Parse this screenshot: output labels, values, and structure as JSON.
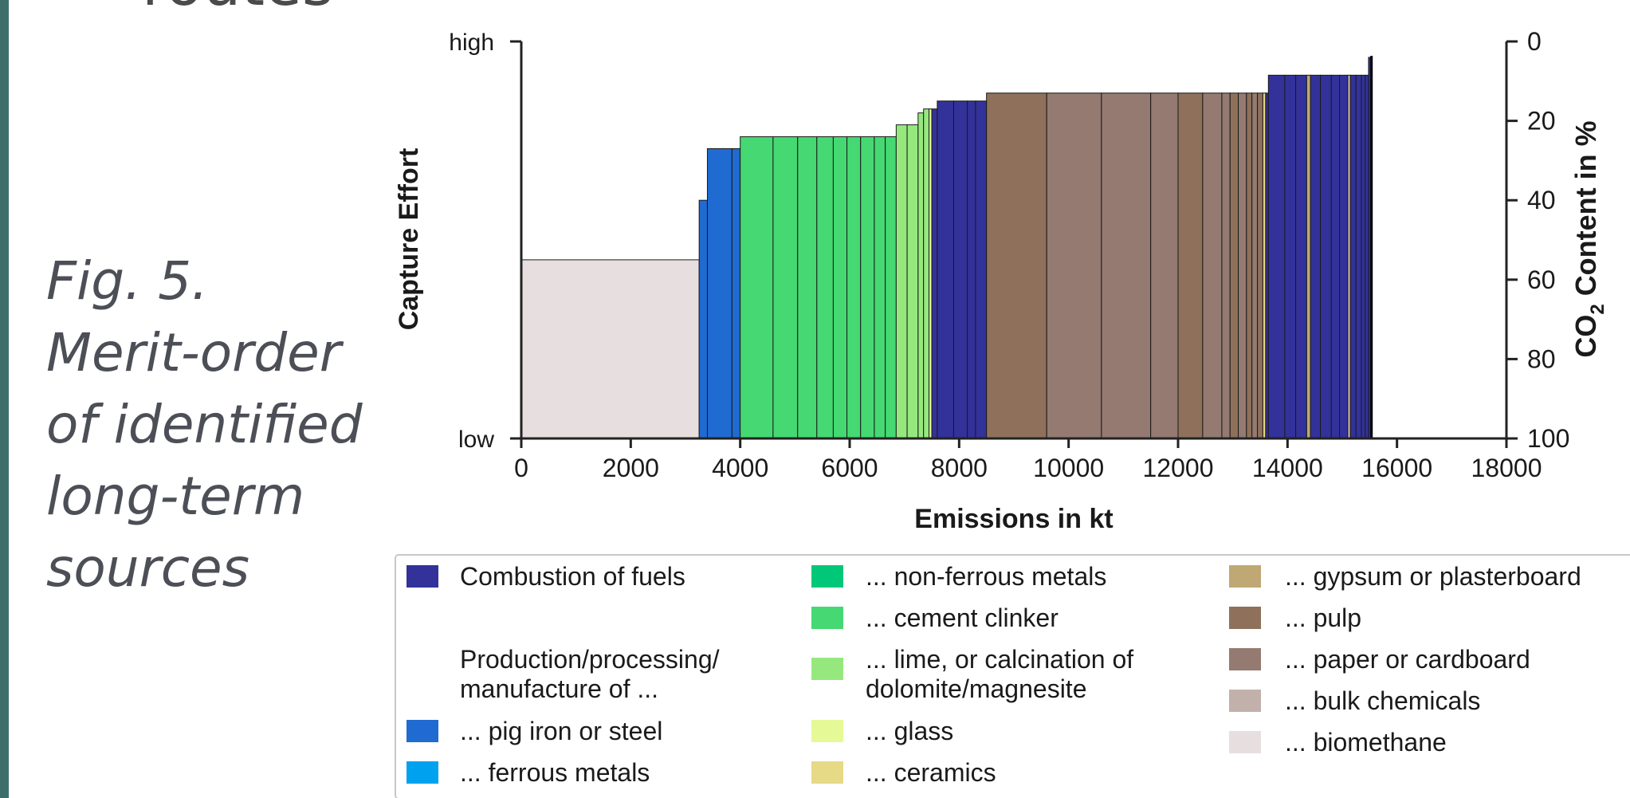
{
  "heading_fragment": "routes",
  "caption": {
    "lines": [
      "Fig. 5.",
      "Merit-order",
      "of identified",
      "long-term",
      "sources"
    ]
  },
  "chart_data": {
    "type": "bar",
    "subtype": "merit-order step chart (variable width bars)",
    "xlabel": "Emissions in kt",
    "ylabel_left": "Capture Effort",
    "ylabel_right_parts": [
      "CO",
      "2",
      " Content in %"
    ],
    "xlim": [
      0,
      18000
    ],
    "x_ticks": [
      "0",
      "2000",
      "4000",
      "6000",
      "8000",
      "10000",
      "12000",
      "14000",
      "16000",
      "18000"
    ],
    "left_ticks": [
      "high",
      "low"
    ],
    "right_ticks": [
      "0",
      "20",
      "40",
      "60",
      "80",
      "100"
    ],
    "right_ylim_inverted": [
      0,
      100
    ],
    "colors": {
      "combustion": "#32329a",
      "steel": "#1f6bd1",
      "ferrous": "#00a2f0",
      "nonferrous": "#00c878",
      "cement": "#45d873",
      "lime": "#96e87e",
      "glass": "#e5f996",
      "ceramics": "#e6da87",
      "gypsum": "#bfa874",
      "pulp": "#8f705a",
      "paper": "#947a71",
      "bulk": "#c2b0aa",
      "biomethane": "#e7dfdf"
    },
    "bars": [
      {
        "category": "biomethane",
        "x0": 0,
        "x1": 3250,
        "co2_pct": 55
      },
      {
        "category": "steel",
        "x0": 3250,
        "x1": 3400,
        "co2_pct": 40
      },
      {
        "category": "steel",
        "x0": 3400,
        "x1": 3850,
        "co2_pct": 27
      },
      {
        "category": "steel",
        "x0": 3850,
        "x1": 4000,
        "co2_pct": 27
      },
      {
        "category": "cement",
        "x0": 4000,
        "x1": 4600,
        "co2_pct": 24
      },
      {
        "category": "cement",
        "x0": 4600,
        "x1": 5050,
        "co2_pct": 24
      },
      {
        "category": "cement",
        "x0": 5050,
        "x1": 5400,
        "co2_pct": 24
      },
      {
        "category": "cement",
        "x0": 5400,
        "x1": 5700,
        "co2_pct": 24
      },
      {
        "category": "cement",
        "x0": 5700,
        "x1": 5950,
        "co2_pct": 24
      },
      {
        "category": "cement",
        "x0": 5950,
        "x1": 6200,
        "co2_pct": 24
      },
      {
        "category": "cement",
        "x0": 6200,
        "x1": 6450,
        "co2_pct": 24
      },
      {
        "category": "cement",
        "x0": 6450,
        "x1": 6650,
        "co2_pct": 24
      },
      {
        "category": "cement",
        "x0": 6650,
        "x1": 6850,
        "co2_pct": 24
      },
      {
        "category": "lime",
        "x0": 6850,
        "x1": 7050,
        "co2_pct": 21
      },
      {
        "category": "lime",
        "x0": 7050,
        "x1": 7250,
        "co2_pct": 21
      },
      {
        "category": "lime",
        "x0": 7250,
        "x1": 7350,
        "co2_pct": 18
      },
      {
        "category": "lime",
        "x0": 7350,
        "x1": 7450,
        "co2_pct": 17
      },
      {
        "category": "glass",
        "x0": 7450,
        "x1": 7500,
        "co2_pct": 17
      },
      {
        "category": "combustion",
        "x0": 7500,
        "x1": 7600,
        "co2_pct": 17
      },
      {
        "category": "combustion",
        "x0": 7600,
        "x1": 7900,
        "co2_pct": 15
      },
      {
        "category": "combustion",
        "x0": 7900,
        "x1": 8150,
        "co2_pct": 15
      },
      {
        "category": "combustion",
        "x0": 8150,
        "x1": 8300,
        "co2_pct": 15
      },
      {
        "category": "combustion",
        "x0": 8300,
        "x1": 8500,
        "co2_pct": 15
      },
      {
        "category": "pulp",
        "x0": 8500,
        "x1": 9600,
        "co2_pct": 13
      },
      {
        "category": "paper",
        "x0": 9600,
        "x1": 10600,
        "co2_pct": 13
      },
      {
        "category": "paper",
        "x0": 10600,
        "x1": 11500,
        "co2_pct": 13
      },
      {
        "category": "paper",
        "x0": 11500,
        "x1": 12000,
        "co2_pct": 13
      },
      {
        "category": "pulp",
        "x0": 12000,
        "x1": 12450,
        "co2_pct": 13
      },
      {
        "category": "paper",
        "x0": 12450,
        "x1": 12800,
        "co2_pct": 13
      },
      {
        "category": "paper",
        "x0": 12800,
        "x1": 12950,
        "co2_pct": 13
      },
      {
        "category": "pulp",
        "x0": 12950,
        "x1": 13100,
        "co2_pct": 13
      },
      {
        "category": "paper",
        "x0": 13100,
        "x1": 13250,
        "co2_pct": 13
      },
      {
        "category": "pulp",
        "x0": 13250,
        "x1": 13350,
        "co2_pct": 13
      },
      {
        "category": "paper",
        "x0": 13350,
        "x1": 13450,
        "co2_pct": 13
      },
      {
        "category": "pulp",
        "x0": 13450,
        "x1": 13550,
        "co2_pct": 13
      },
      {
        "category": "ceramics",
        "x0": 13550,
        "x1": 13600,
        "co2_pct": 13
      },
      {
        "category": "combustion",
        "x0": 13600,
        "x1": 13650,
        "co2_pct": 13
      },
      {
        "category": "combustion",
        "x0": 13650,
        "x1": 13950,
        "co2_pct": 8.5
      },
      {
        "category": "combustion",
        "x0": 13950,
        "x1": 14150,
        "co2_pct": 8.5
      },
      {
        "category": "combustion",
        "x0": 14150,
        "x1": 14350,
        "co2_pct": 8.5
      },
      {
        "category": "gypsum",
        "x0": 14350,
        "x1": 14420,
        "co2_pct": 8.5
      },
      {
        "category": "combustion",
        "x0": 14420,
        "x1": 14600,
        "co2_pct": 8.5
      },
      {
        "category": "combustion",
        "x0": 14600,
        "x1": 14800,
        "co2_pct": 8.5
      },
      {
        "category": "combustion",
        "x0": 14800,
        "x1": 14950,
        "co2_pct": 8.5
      },
      {
        "category": "combustion",
        "x0": 14950,
        "x1": 15100,
        "co2_pct": 8.5
      },
      {
        "category": "bulk",
        "x0": 15100,
        "x1": 15150,
        "co2_pct": 8.5
      },
      {
        "category": "combustion",
        "x0": 15150,
        "x1": 15250,
        "co2_pct": 8.5
      },
      {
        "category": "combustion",
        "x0": 15250,
        "x1": 15350,
        "co2_pct": 8.5
      },
      {
        "category": "combustion",
        "x0": 15350,
        "x1": 15420,
        "co2_pct": 8.5
      },
      {
        "category": "combustion",
        "x0": 15420,
        "x1": 15480,
        "co2_pct": 8.5
      },
      {
        "category": "combustion",
        "x0": 15480,
        "x1": 15520,
        "co2_pct": 4
      }
    ],
    "legend": {
      "col1": [
        {
          "key": "combustion",
          "label": "Combustion of fuels"
        },
        {
          "key": null,
          "label_lines": [
            "Production/processing/",
            "manufacture of ..."
          ]
        },
        {
          "key": "steel",
          "label": "... pig iron or steel"
        },
        {
          "key": "ferrous",
          "label": "... ferrous metals"
        }
      ],
      "col2": [
        {
          "key": "nonferrous",
          "label": "... non-ferrous metals"
        },
        {
          "key": "cement",
          "label": "... cement clinker"
        },
        {
          "key": "lime",
          "label_lines": [
            "... lime, or calcination of",
            " dolomite/magnesite"
          ]
        },
        {
          "key": "glass",
          "label": "... glass"
        },
        {
          "key": "ceramics",
          "label": "... ceramics"
        }
      ],
      "col3": [
        {
          "key": "gypsum",
          "label": "... gypsum or plasterboard"
        },
        {
          "key": "pulp",
          "label": "... pulp"
        },
        {
          "key": "paper",
          "label": "... paper or cardboard"
        },
        {
          "key": "bulk",
          "label": "... bulk chemicals"
        },
        {
          "key": "biomethane",
          "label": "... biomethane"
        }
      ]
    }
  }
}
